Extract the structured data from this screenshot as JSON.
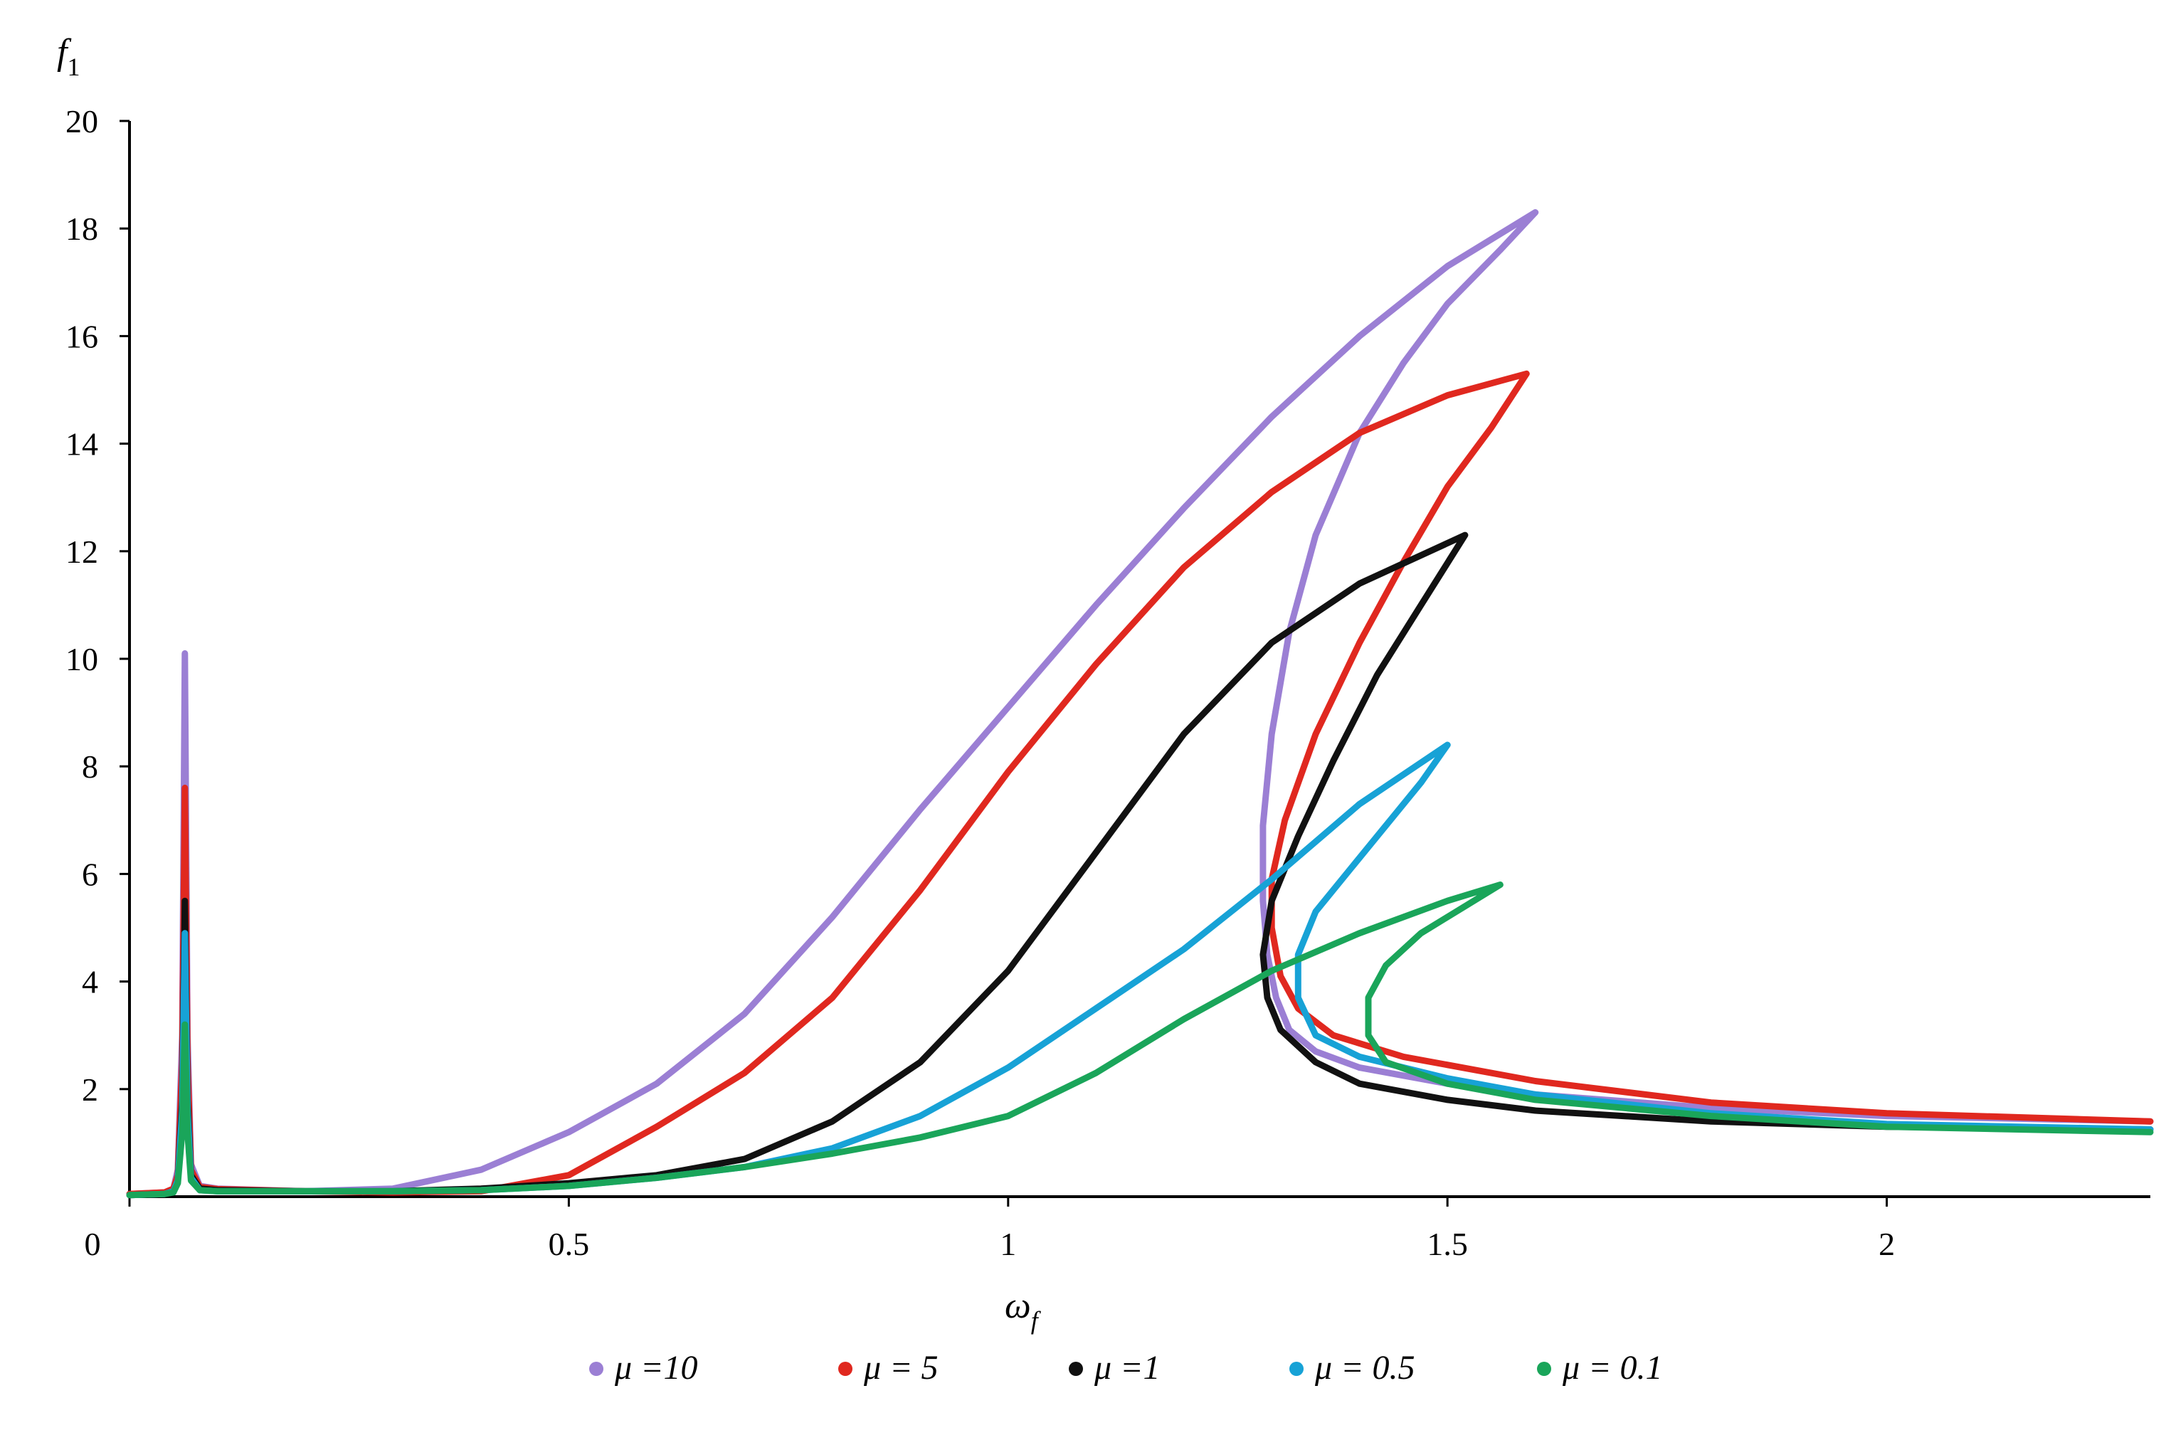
{
  "chart_data": {
    "type": "line",
    "title": "",
    "xlabel": "ω_f",
    "ylabel": "f_1",
    "xlim": [
      0,
      2.3
    ],
    "ylim": [
      0,
      20
    ],
    "xticks": [
      "0",
      "0.5",
      "1",
      "1.5",
      "2"
    ],
    "xtick_values": [
      0,
      0.5,
      1,
      1.5,
      2
    ],
    "yticks": [
      "2",
      "4",
      "6",
      "8",
      "10",
      "12",
      "14",
      "16",
      "18",
      "20"
    ],
    "ytick_values": [
      2,
      4,
      6,
      8,
      10,
      12,
      14,
      16,
      18,
      20
    ],
    "grid": false,
    "legend_position": "bottom",
    "series": [
      {
        "name": "μ =10",
        "color": "#9b7fd4",
        "points": [
          [
            0,
            0.05
          ],
          [
            0.04,
            0.08
          ],
          [
            0.05,
            0.15
          ],
          [
            0.055,
            0.5
          ],
          [
            0.06,
            3
          ],
          [
            0.063,
            10.1
          ],
          [
            0.066,
            3
          ],
          [
            0.07,
            0.6
          ],
          [
            0.08,
            0.2
          ],
          [
            0.1,
            0.15
          ],
          [
            0.2,
            0.1
          ],
          [
            0.3,
            0.15
          ],
          [
            0.4,
            0.5
          ],
          [
            0.5,
            1.2
          ],
          [
            0.6,
            2.1
          ],
          [
            0.7,
            3.4
          ],
          [
            0.8,
            5.2
          ],
          [
            0.9,
            7.2
          ],
          [
            1.0,
            9.1
          ],
          [
            1.1,
            11.0
          ],
          [
            1.2,
            12.8
          ],
          [
            1.3,
            14.5
          ],
          [
            1.4,
            16.0
          ],
          [
            1.5,
            17.3
          ],
          [
            1.6,
            18.3
          ],
          [
            1.56,
            17.6
          ],
          [
            1.5,
            16.6
          ],
          [
            1.45,
            15.5
          ],
          [
            1.4,
            14.2
          ],
          [
            1.35,
            12.3
          ],
          [
            1.32,
            10.5
          ],
          [
            1.3,
            8.6
          ],
          [
            1.29,
            6.9
          ],
          [
            1.29,
            5.5
          ],
          [
            1.295,
            4.5
          ],
          [
            1.305,
            3.7
          ],
          [
            1.32,
            3.1
          ],
          [
            1.35,
            2.7
          ],
          [
            1.4,
            2.4
          ],
          [
            1.5,
            2.1
          ],
          [
            1.6,
            1.9
          ],
          [
            1.8,
            1.65
          ],
          [
            2.0,
            1.5
          ],
          [
            2.3,
            1.4
          ]
        ]
      },
      {
        "name": "μ = 5",
        "color": "#e0281f",
        "points": [
          [
            0,
            0.05
          ],
          [
            0.04,
            0.08
          ],
          [
            0.05,
            0.15
          ],
          [
            0.055,
            0.4
          ],
          [
            0.06,
            2.5
          ],
          [
            0.063,
            7.6
          ],
          [
            0.066,
            2.5
          ],
          [
            0.07,
            0.5
          ],
          [
            0.08,
            0.18
          ],
          [
            0.1,
            0.14
          ],
          [
            0.2,
            0.1
          ],
          [
            0.3,
            0.08
          ],
          [
            0.4,
            0.1
          ],
          [
            0.5,
            0.4
          ],
          [
            0.6,
            1.3
          ],
          [
            0.7,
            2.3
          ],
          [
            0.8,
            3.7
          ],
          [
            0.9,
            5.7
          ],
          [
            1.0,
            7.9
          ],
          [
            1.1,
            9.9
          ],
          [
            1.2,
            11.7
          ],
          [
            1.3,
            13.1
          ],
          [
            1.4,
            14.2
          ],
          [
            1.5,
            14.9
          ],
          [
            1.59,
            15.3
          ],
          [
            1.55,
            14.3
          ],
          [
            1.5,
            13.2
          ],
          [
            1.45,
            11.8
          ],
          [
            1.4,
            10.3
          ],
          [
            1.35,
            8.6
          ],
          [
            1.315,
            7.0
          ],
          [
            1.3,
            5.9
          ],
          [
            1.3,
            5.0
          ],
          [
            1.31,
            4.1
          ],
          [
            1.33,
            3.5
          ],
          [
            1.37,
            3.0
          ],
          [
            1.45,
            2.6
          ],
          [
            1.6,
            2.15
          ],
          [
            1.8,
            1.75
          ],
          [
            2.0,
            1.55
          ],
          [
            2.3,
            1.4
          ]
        ]
      },
      {
        "name": "μ =1",
        "color": "#111111",
        "points": [
          [
            0,
            0.03
          ],
          [
            0.04,
            0.05
          ],
          [
            0.05,
            0.1
          ],
          [
            0.055,
            0.3
          ],
          [
            0.06,
            1.8
          ],
          [
            0.063,
            5.5
          ],
          [
            0.066,
            1.8
          ],
          [
            0.07,
            0.4
          ],
          [
            0.08,
            0.15
          ],
          [
            0.1,
            0.12
          ],
          [
            0.2,
            0.1
          ],
          [
            0.3,
            0.1
          ],
          [
            0.4,
            0.15
          ],
          [
            0.5,
            0.25
          ],
          [
            0.6,
            0.4
          ],
          [
            0.7,
            0.7
          ],
          [
            0.8,
            1.4
          ],
          [
            0.9,
            2.5
          ],
          [
            1.0,
            4.2
          ],
          [
            1.1,
            6.4
          ],
          [
            1.2,
            8.6
          ],
          [
            1.3,
            10.3
          ],
          [
            1.4,
            11.4
          ],
          [
            1.52,
            12.3
          ],
          [
            1.47,
            11.0
          ],
          [
            1.42,
            9.7
          ],
          [
            1.37,
            8.1
          ],
          [
            1.33,
            6.7
          ],
          [
            1.3,
            5.5
          ],
          [
            1.29,
            4.5
          ],
          [
            1.295,
            3.7
          ],
          [
            1.31,
            3.1
          ],
          [
            1.35,
            2.5
          ],
          [
            1.4,
            2.1
          ],
          [
            1.5,
            1.8
          ],
          [
            1.6,
            1.6
          ],
          [
            1.8,
            1.4
          ],
          [
            2.0,
            1.3
          ],
          [
            2.3,
            1.25
          ]
        ]
      },
      {
        "name": "μ = 0.5",
        "color": "#17a2d6",
        "points": [
          [
            0,
            0.03
          ],
          [
            0.04,
            0.05
          ],
          [
            0.05,
            0.1
          ],
          [
            0.055,
            0.3
          ],
          [
            0.06,
            1.6
          ],
          [
            0.063,
            4.9
          ],
          [
            0.066,
            1.6
          ],
          [
            0.07,
            0.35
          ],
          [
            0.08,
            0.12
          ],
          [
            0.1,
            0.1
          ],
          [
            0.2,
            0.1
          ],
          [
            0.3,
            0.1
          ],
          [
            0.4,
            0.12
          ],
          [
            0.5,
            0.2
          ],
          [
            0.6,
            0.35
          ],
          [
            0.7,
            0.55
          ],
          [
            0.8,
            0.9
          ],
          [
            0.9,
            1.5
          ],
          [
            1.0,
            2.4
          ],
          [
            1.1,
            3.5
          ],
          [
            1.2,
            4.6
          ],
          [
            1.3,
            5.9
          ],
          [
            1.4,
            7.3
          ],
          [
            1.5,
            8.4
          ],
          [
            1.47,
            7.7
          ],
          [
            1.43,
            6.9
          ],
          [
            1.39,
            6.1
          ],
          [
            1.35,
            5.3
          ],
          [
            1.33,
            4.5
          ],
          [
            1.33,
            3.7
          ],
          [
            1.35,
            3.0
          ],
          [
            1.4,
            2.6
          ],
          [
            1.5,
            2.2
          ],
          [
            1.6,
            1.9
          ],
          [
            1.8,
            1.55
          ],
          [
            2.0,
            1.35
          ],
          [
            2.3,
            1.25
          ]
        ]
      },
      {
        "name": "μ = 0.1",
        "color": "#1aa55a",
        "points": [
          [
            0,
            0.03
          ],
          [
            0.04,
            0.05
          ],
          [
            0.05,
            0.08
          ],
          [
            0.055,
            0.25
          ],
          [
            0.06,
            1.2
          ],
          [
            0.063,
            3.2
          ],
          [
            0.066,
            1.2
          ],
          [
            0.07,
            0.3
          ],
          [
            0.08,
            0.12
          ],
          [
            0.1,
            0.1
          ],
          [
            0.2,
            0.1
          ],
          [
            0.3,
            0.1
          ],
          [
            0.4,
            0.12
          ],
          [
            0.5,
            0.2
          ],
          [
            0.6,
            0.35
          ],
          [
            0.7,
            0.55
          ],
          [
            0.8,
            0.8
          ],
          [
            0.9,
            1.1
          ],
          [
            1.0,
            1.5
          ],
          [
            1.1,
            2.3
          ],
          [
            1.2,
            3.3
          ],
          [
            1.3,
            4.2
          ],
          [
            1.4,
            4.9
          ],
          [
            1.5,
            5.5
          ],
          [
            1.56,
            5.8
          ],
          [
            1.52,
            5.4
          ],
          [
            1.47,
            4.9
          ],
          [
            1.43,
            4.3
          ],
          [
            1.41,
            3.7
          ],
          [
            1.41,
            3.0
          ],
          [
            1.43,
            2.5
          ],
          [
            1.5,
            2.1
          ],
          [
            1.6,
            1.8
          ],
          [
            1.8,
            1.5
          ],
          [
            2.0,
            1.3
          ],
          [
            2.3,
            1.2
          ]
        ]
      }
    ]
  }
}
